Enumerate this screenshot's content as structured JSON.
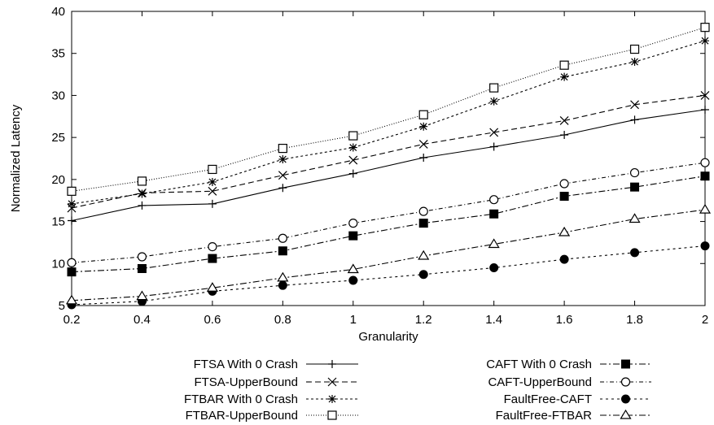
{
  "chart_data": {
    "type": "line",
    "title": "",
    "xlabel": "Granularity",
    "ylabel": "Normalized Latency",
    "xlim": [
      0.2,
      2
    ],
    "ylim": [
      5,
      40
    ],
    "xticks": [
      "0.2",
      "0.4",
      "0.6",
      "0.8",
      "1",
      "1.2",
      "1.4",
      "1.6",
      "1.8",
      "2"
    ],
    "yticks": [
      "5",
      "10",
      "15",
      "20",
      "25",
      "30",
      "35",
      "40"
    ],
    "grid": false,
    "legend_position": "bottom",
    "x": [
      0.2,
      0.4,
      0.6,
      0.8,
      1.0,
      1.2,
      1.4,
      1.6,
      1.8,
      2.0
    ],
    "series": [
      {
        "name": "FTSA With 0 Crash",
        "marker": "plus",
        "dash": "",
        "values": [
          15.1,
          16.9,
          17.1,
          19.0,
          20.7,
          22.6,
          23.9,
          25.3,
          27.1,
          28.3
        ],
        "marked": false
      },
      {
        "name": "FTSA-UpperBound",
        "marker": "cross",
        "dash": "7,4",
        "values": [
          16.6,
          18.4,
          18.6,
          20.5,
          22.3,
          24.2,
          25.6,
          27.0,
          28.9,
          30.0
        ],
        "marked": true
      },
      {
        "name": "FTBAR With 0 Crash",
        "marker": "star",
        "dash": "3,3",
        "values": [
          17.1,
          18.3,
          19.7,
          22.4,
          23.8,
          26.3,
          29.3,
          32.2,
          34.0,
          36.5
        ],
        "marked": true
      },
      {
        "name": "FTBAR-UpperBound",
        "marker": "square-open",
        "dash": "1,2",
        "values": [
          18.6,
          19.8,
          21.2,
          23.7,
          25.2,
          27.7,
          30.9,
          33.6,
          35.5,
          38.1
        ],
        "marked": true
      },
      {
        "name": "CAFT With 0 Crash",
        "marker": "square-filled",
        "dash": "8,3,2,3",
        "values": [
          9.0,
          9.4,
          10.6,
          11.5,
          13.3,
          14.8,
          15.9,
          18.0,
          19.1,
          20.4
        ],
        "marked": true
      },
      {
        "name": "CAFT-UpperBound",
        "marker": "circle-open",
        "dash": "5,3,1,3",
        "values": [
          10.1,
          10.8,
          12.0,
          13.0,
          14.8,
          16.2,
          17.6,
          19.5,
          20.8,
          22.0
        ],
        "marked": true
      },
      {
        "name": "FaultFree-CAFT",
        "marker": "circle-filled",
        "dash": "3,4",
        "values": [
          5.1,
          5.5,
          6.7,
          7.4,
          8.0,
          8.7,
          9.5,
          10.5,
          11.3,
          12.1
        ],
        "marked": true
      },
      {
        "name": "FaultFree-FTBAR",
        "marker": "triangle-open",
        "dash": "8,3,2,3",
        "values": [
          5.6,
          6.1,
          7.1,
          8.3,
          9.3,
          10.9,
          12.3,
          13.7,
          15.3,
          16.4
        ],
        "marked": true
      }
    ]
  }
}
